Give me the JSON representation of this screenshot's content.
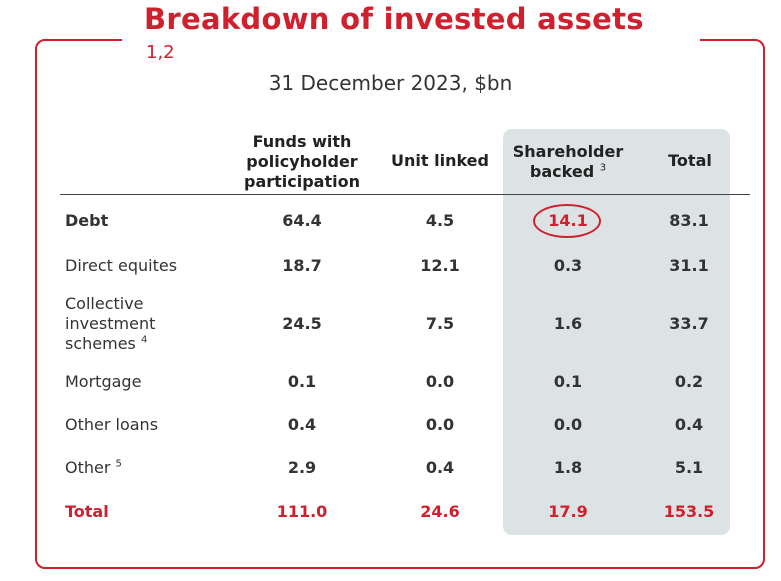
{
  "title": "Breakdown of invested assets",
  "title_footnote": "1,2",
  "subtitle": "31 December 2023, $bn",
  "columns": {
    "funds_line1": "Funds with",
    "funds_line2": "policyholder",
    "funds_line3": "participation",
    "unit_linked": "Unit linked",
    "shareholder_line1": "Shareholder",
    "shareholder_line2": "backed",
    "shareholder_note": "3",
    "total": "Total"
  },
  "rows": [
    {
      "label": "Debt",
      "funds": "64.4",
      "unit": "4.5",
      "share": "14.1",
      "total": "83.1"
    },
    {
      "label": "Direct equites",
      "funds": "18.7",
      "unit": "12.1",
      "share": "0.3",
      "total": "31.1"
    },
    {
      "label_line1": "Collective",
      "label_line2": "investment",
      "label_line3": "schemes",
      "note": "4",
      "funds": "24.5",
      "unit": "7.5",
      "share": "1.6",
      "total": "33.7"
    },
    {
      "label": "Mortgage",
      "funds": "0.1",
      "unit": "0.0",
      "share": "0.1",
      "total": "0.2"
    },
    {
      "label": "Other loans",
      "funds": "0.4",
      "unit": "0.0",
      "share": "0.0",
      "total": "0.4"
    },
    {
      "label": "Other",
      "note": "5",
      "funds": "2.9",
      "unit": "0.4",
      "share": "1.8",
      "total": "5.1"
    },
    {
      "label": "Total",
      "funds": "111.0",
      "unit": "24.6",
      "share": "17.9",
      "total": "153.5"
    }
  ],
  "colors": {
    "accent": "#d0202d",
    "shade": "#dde3e5"
  }
}
